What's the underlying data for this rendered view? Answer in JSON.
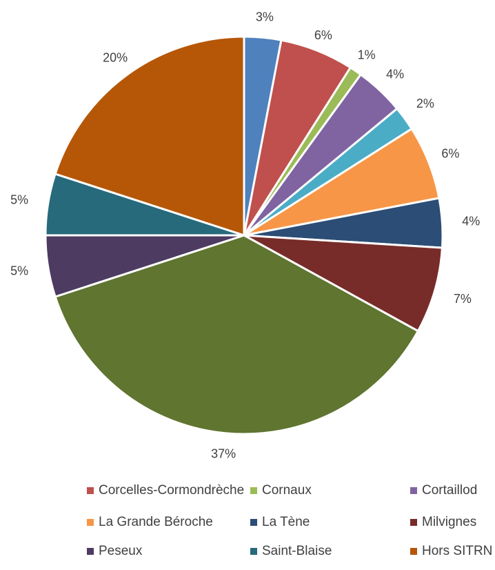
{
  "chart_data": {
    "type": "pie",
    "start_angle_deg": 0,
    "direction": "clockwise",
    "slices": [
      {
        "value": 3,
        "label": "3%",
        "color": "#4F81BD",
        "name": ""
      },
      {
        "value": 6,
        "label": "6%",
        "color": "#C0504D",
        "name": "Corcelles-Cormondrèche"
      },
      {
        "value": 1,
        "label": "1%",
        "color": "#9BBB59",
        "name": "Cornaux"
      },
      {
        "value": 4,
        "label": "4%",
        "color": "#8064A2",
        "name": "Cortaillod"
      },
      {
        "value": 2,
        "label": "2%",
        "color": "#4BACC6",
        "name": ""
      },
      {
        "value": 6,
        "label": "6%",
        "color": "#F79646",
        "name": "La Grande Béroche"
      },
      {
        "value": 4,
        "label": "4%",
        "color": "#2C4D75",
        "name": "La Tène"
      },
      {
        "value": 7,
        "label": "7%",
        "color": "#772C2A",
        "name": "Milvignes"
      },
      {
        "value": 37,
        "label": "37%",
        "color": "#5F7530",
        "name": ""
      },
      {
        "value": 5,
        "label": "5%",
        "color": "#4D3B62",
        "name": "Peseux"
      },
      {
        "value": 5,
        "label": "5%",
        "color": "#276A7C",
        "name": "Saint-Blaise"
      },
      {
        "value": 20,
        "label": "20%",
        "color": "#B65708",
        "name": "Hors SITRN"
      }
    ],
    "legend": [
      {
        "label": "Corcelles-Cormondrèche",
        "color": "#C0504D"
      },
      {
        "label": "Cornaux",
        "color": "#9BBB59"
      },
      {
        "label": "Cortaillod",
        "color": "#8064A2"
      },
      {
        "label": "La Grande Béroche",
        "color": "#F79646"
      },
      {
        "label": "La Tène",
        "color": "#2C4D75"
      },
      {
        "label": "Milvignes",
        "color": "#772C2A"
      },
      {
        "label": "Peseux",
        "color": "#4D3B62"
      },
      {
        "label": "Saint-Blaise",
        "color": "#276A7C"
      },
      {
        "label": "Hors SITRN",
        "color": "#B65708"
      }
    ],
    "legend_position": "bottom"
  }
}
